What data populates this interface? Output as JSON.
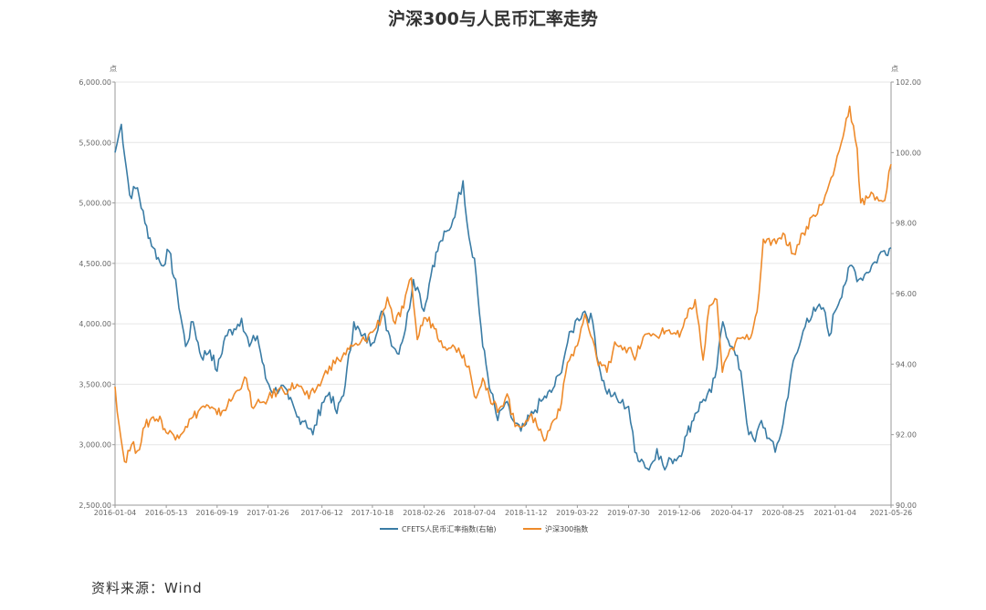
{
  "chart_data": {
    "type": "line",
    "title": "沪深300与人民币汇率走势",
    "left_unit": "点",
    "right_unit": "点",
    "left_axis": {
      "min": 2500,
      "max": 6000,
      "ticks": [
        "2,500.00",
        "3,000.00",
        "3,500.00",
        "4,000.00",
        "4,500.00",
        "5,000.00",
        "5,500.00",
        "6,000.00"
      ]
    },
    "right_axis": {
      "min": 90,
      "max": 102,
      "ticks": [
        "90.00",
        "92.00",
        "94.00",
        "96.00",
        "98.00",
        "100.00",
        "102.00"
      ]
    },
    "x_range": [
      "2016-01-04",
      "2021-05-26"
    ],
    "x_ticks": [
      "2016-01-04",
      "2016-05-13",
      "2016-09-19",
      "2017-01-26",
      "2017-06-12",
      "2017-10-18",
      "2018-02-26",
      "2018-07-04",
      "2018-11-12",
      "2019-03-22",
      "2019-07-30",
      "2019-12-06",
      "2020-04-17",
      "2020-08-25",
      "2021-01-04",
      "2021-05-26"
    ],
    "series": [
      {
        "name": "CFETS人民币汇率指数(右轴)",
        "axis": "right",
        "color": "#3a7ca5",
        "points": [
          [
            "2016-01-04",
            100.0
          ],
          [
            "2016-01-20",
            100.8
          ],
          [
            "2016-02-10",
            98.8
          ],
          [
            "2016-03-01",
            99.0
          ],
          [
            "2016-03-20",
            98.0
          ],
          [
            "2016-04-10",
            97.3
          ],
          [
            "2016-05-01",
            96.8
          ],
          [
            "2016-05-20",
            97.2
          ],
          [
            "2016-06-10",
            96.0
          ],
          [
            "2016-07-01",
            94.5
          ],
          [
            "2016-07-20",
            95.2
          ],
          [
            "2016-08-10",
            94.2
          ],
          [
            "2016-09-01",
            94.4
          ],
          [
            "2016-09-19",
            93.8
          ],
          [
            "2016-10-10",
            94.8
          ],
          [
            "2016-11-01",
            95.0
          ],
          [
            "2016-11-20",
            95.3
          ],
          [
            "2016-12-10",
            94.5
          ],
          [
            "2016-12-30",
            94.8
          ],
          [
            "2017-01-20",
            93.6
          ],
          [
            "2017-02-10",
            93.2
          ],
          [
            "2017-03-01",
            93.4
          ],
          [
            "2017-03-20",
            93.0
          ],
          [
            "2017-04-10",
            92.5
          ],
          [
            "2017-05-01",
            92.4
          ],
          [
            "2017-05-20",
            92.0
          ],
          [
            "2017-06-12",
            92.9
          ],
          [
            "2017-07-01",
            93.2
          ],
          [
            "2017-07-20",
            92.6
          ],
          [
            "2017-08-10",
            93.4
          ],
          [
            "2017-09-01",
            95.2
          ],
          [
            "2017-09-20",
            94.8
          ],
          [
            "2017-10-18",
            94.6
          ],
          [
            "2017-11-10",
            95.5
          ],
          [
            "2017-12-01",
            94.8
          ],
          [
            "2017-12-20",
            94.3
          ],
          [
            "2018-01-10",
            95.0
          ],
          [
            "2018-01-30",
            96.4
          ],
          [
            "2018-02-15",
            96.0
          ],
          [
            "2018-02-26",
            95.5
          ],
          [
            "2018-03-20",
            96.8
          ],
          [
            "2018-04-10",
            97.5
          ],
          [
            "2018-05-01",
            97.8
          ],
          [
            "2018-05-20",
            98.5
          ],
          [
            "2018-06-05",
            99.2
          ],
          [
            "2018-06-20",
            97.6
          ],
          [
            "2018-07-04",
            97.0
          ],
          [
            "2018-07-25",
            94.5
          ],
          [
            "2018-08-15",
            93.2
          ],
          [
            "2018-09-01",
            92.4
          ],
          [
            "2018-09-20",
            92.9
          ],
          [
            "2018-10-10",
            92.4
          ],
          [
            "2018-10-30",
            92.1
          ],
          [
            "2018-11-12",
            92.3
          ],
          [
            "2018-12-05",
            92.7
          ],
          [
            "2018-12-25",
            93.0
          ],
          [
            "2019-01-15",
            93.2
          ],
          [
            "2019-02-05",
            93.7
          ],
          [
            "2019-02-25",
            94.6
          ],
          [
            "2019-03-22",
            95.3
          ],
          [
            "2019-04-10",
            95.5
          ],
          [
            "2019-04-30",
            95.2
          ],
          [
            "2019-05-15",
            94.0
          ],
          [
            "2019-06-01",
            93.3
          ],
          [
            "2019-06-20",
            93.1
          ],
          [
            "2019-07-10",
            92.9
          ],
          [
            "2019-07-30",
            92.8
          ],
          [
            "2019-08-15",
            91.5
          ],
          [
            "2019-09-01",
            91.3
          ],
          [
            "2019-09-20",
            91.0
          ],
          [
            "2019-10-10",
            91.6
          ],
          [
            "2019-10-30",
            91.0
          ],
          [
            "2019-11-15",
            91.3
          ],
          [
            "2019-12-06",
            91.4
          ],
          [
            "2019-12-25",
            92.0
          ],
          [
            "2020-01-15",
            92.6
          ],
          [
            "2020-02-05",
            93.0
          ],
          [
            "2020-02-25",
            93.2
          ],
          [
            "2020-03-10",
            93.9
          ],
          [
            "2020-03-25",
            95.2
          ],
          [
            "2020-04-17",
            94.5
          ],
          [
            "2020-05-10",
            93.8
          ],
          [
            "2020-05-30",
            92.0
          ],
          [
            "2020-06-15",
            91.8
          ],
          [
            "2020-07-01",
            92.4
          ],
          [
            "2020-07-20",
            91.9
          ],
          [
            "2020-08-05",
            91.5
          ],
          [
            "2020-08-25",
            92.3
          ],
          [
            "2020-09-15",
            93.8
          ],
          [
            "2020-10-05",
            94.5
          ],
          [
            "2020-10-25",
            95.3
          ],
          [
            "2020-11-15",
            95.5
          ],
          [
            "2020-12-05",
            95.6
          ],
          [
            "2020-12-20",
            94.8
          ],
          [
            "2021-01-04",
            95.5
          ],
          [
            "2021-01-25",
            96.2
          ],
          [
            "2021-02-15",
            96.8
          ],
          [
            "2021-03-05",
            96.4
          ],
          [
            "2021-03-25",
            96.6
          ],
          [
            "2021-04-15",
            96.9
          ],
          [
            "2021-05-05",
            97.2
          ],
          [
            "2021-05-26",
            97.3
          ]
        ]
      },
      {
        "name": "沪深300指数",
        "axis": "left",
        "color": "#ee8a2a",
        "points": [
          [
            "2016-01-04",
            3480
          ],
          [
            "2016-01-15",
            3150
          ],
          [
            "2016-01-28",
            2860
          ],
          [
            "2016-02-15",
            3000
          ],
          [
            "2016-03-01",
            2950
          ],
          [
            "2016-03-20",
            3150
          ],
          [
            "2016-04-10",
            3230
          ],
          [
            "2016-05-01",
            3200
          ],
          [
            "2016-05-13",
            3100
          ],
          [
            "2016-06-10",
            3080
          ],
          [
            "2016-07-01",
            3150
          ],
          [
            "2016-07-20",
            3230
          ],
          [
            "2016-08-15",
            3320
          ],
          [
            "2016-09-01",
            3300
          ],
          [
            "2016-09-19",
            3250
          ],
          [
            "2016-10-15",
            3320
          ],
          [
            "2016-11-10",
            3450
          ],
          [
            "2016-11-28",
            3560
          ],
          [
            "2016-12-20",
            3300
          ],
          [
            "2017-01-10",
            3350
          ],
          [
            "2017-01-26",
            3380
          ],
          [
            "2017-02-20",
            3450
          ],
          [
            "2017-03-20",
            3460
          ],
          [
            "2017-04-10",
            3500
          ],
          [
            "2017-05-10",
            3380
          ],
          [
            "2017-06-12",
            3530
          ],
          [
            "2017-07-01",
            3650
          ],
          [
            "2017-07-25",
            3700
          ],
          [
            "2017-08-20",
            3790
          ],
          [
            "2017-09-15",
            3830
          ],
          [
            "2017-10-18",
            3930
          ],
          [
            "2017-11-10",
            4050
          ],
          [
            "2017-11-25",
            4220
          ],
          [
            "2017-12-15",
            4000
          ],
          [
            "2018-01-05",
            4130
          ],
          [
            "2018-01-25",
            4380
          ],
          [
            "2018-02-09",
            3870
          ],
          [
            "2018-02-26",
            4050
          ],
          [
            "2018-03-20",
            4000
          ],
          [
            "2018-04-10",
            3860
          ],
          [
            "2018-05-05",
            3800
          ],
          [
            "2018-05-25",
            3800
          ],
          [
            "2018-06-20",
            3650
          ],
          [
            "2018-07-04",
            3400
          ],
          [
            "2018-07-25",
            3550
          ],
          [
            "2018-08-15",
            3340
          ],
          [
            "2018-09-05",
            3300
          ],
          [
            "2018-09-25",
            3420
          ],
          [
            "2018-10-15",
            3150
          ],
          [
            "2018-11-12",
            3200
          ],
          [
            "2018-12-05",
            3220
          ],
          [
            "2018-12-28",
            3030
          ],
          [
            "2019-01-20",
            3200
          ],
          [
            "2019-02-10",
            3350
          ],
          [
            "2019-02-25",
            3680
          ],
          [
            "2019-03-22",
            3820
          ],
          [
            "2019-04-10",
            4080
          ],
          [
            "2019-04-25",
            3900
          ],
          [
            "2019-05-10",
            3720
          ],
          [
            "2019-06-05",
            3600
          ],
          [
            "2019-06-25",
            3850
          ],
          [
            "2019-07-10",
            3820
          ],
          [
            "2019-07-30",
            3800
          ],
          [
            "2019-08-15",
            3700
          ],
          [
            "2019-09-05",
            3890
          ],
          [
            "2019-09-25",
            3900
          ],
          [
            "2019-10-20",
            3920
          ],
          [
            "2019-11-10",
            3950
          ],
          [
            "2019-12-06",
            3890
          ],
          [
            "2019-12-25",
            4050
          ],
          [
            "2020-01-15",
            4200
          ],
          [
            "2020-02-04",
            3700
          ],
          [
            "2020-02-20",
            4150
          ],
          [
            "2020-03-10",
            4200
          ],
          [
            "2020-03-24",
            3600
          ],
          [
            "2020-04-17",
            3800
          ],
          [
            "2020-05-10",
            3880
          ],
          [
            "2020-05-30",
            3870
          ],
          [
            "2020-06-20",
            4100
          ],
          [
            "2020-07-06",
            4700
          ],
          [
            "2020-07-25",
            4650
          ],
          [
            "2020-08-25",
            4750
          ],
          [
            "2020-09-20",
            4580
          ],
          [
            "2020-10-15",
            4750
          ],
          [
            "2020-11-10",
            4900
          ],
          [
            "2020-12-05",
            5000
          ],
          [
            "2021-01-04",
            5300
          ],
          [
            "2021-01-20",
            5500
          ],
          [
            "2021-02-10",
            5800
          ],
          [
            "2021-03-01",
            5450
          ],
          [
            "2021-03-10",
            5000
          ],
          [
            "2021-04-01",
            5050
          ],
          [
            "2021-04-20",
            5050
          ],
          [
            "2021-05-10",
            5020
          ],
          [
            "2021-05-26",
            5320
          ]
        ]
      }
    ]
  },
  "legend": {
    "items": [
      "CFETS人民币汇率指数(右轴)",
      "沪深300指数"
    ]
  },
  "source": "资料来源：Wind"
}
